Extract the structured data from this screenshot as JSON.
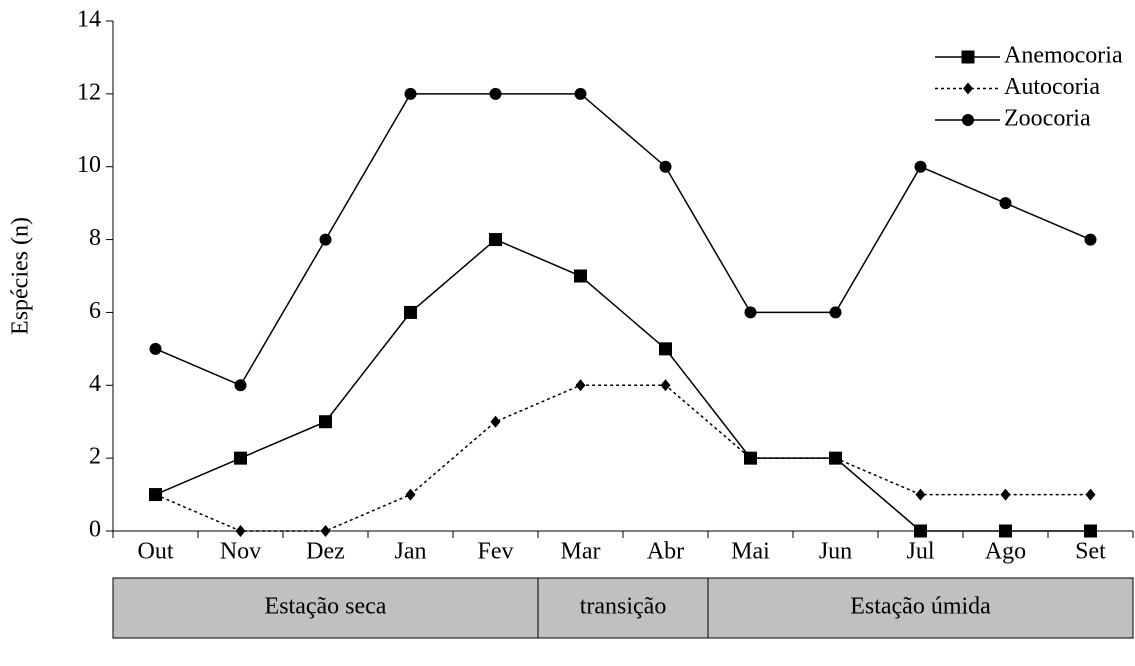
{
  "chart_data": {
    "type": "line",
    "ylabel": "Espécies (n)",
    "categories": [
      "Out",
      "Nov",
      "Dez",
      "Jan",
      "Fev",
      "Mar",
      "Abr",
      "Mai",
      "Jun",
      "Jul",
      "Ago",
      "Set"
    ],
    "series": [
      {
        "name": "Anemocoria",
        "color": "#000000",
        "marker": "square",
        "dash": "solid",
        "values": [
          1,
          2,
          3,
          6,
          8,
          7,
          5,
          2,
          2,
          0,
          0,
          0
        ]
      },
      {
        "name": "Autocoria",
        "color": "#000000",
        "marker": "diamond",
        "dash": "dotted",
        "values": [
          1,
          0,
          0,
          1,
          3,
          4,
          4,
          2,
          2,
          1,
          1,
          1
        ]
      },
      {
        "name": "Zoocoria",
        "color": "#000000",
        "marker": "circle",
        "dash": "solid",
        "values": [
          5,
          4,
          8,
          12,
          12,
          12,
          10,
          6,
          6,
          10,
          9,
          8
        ]
      }
    ],
    "ylim": [
      0,
      14
    ],
    "yticks": [
      0,
      2,
      4,
      6,
      8,
      10,
      12,
      14
    ],
    "legend": "upper right",
    "seasons": [
      {
        "label": "Estação seca",
        "months": 5
      },
      {
        "label": "transição",
        "months": 2
      },
      {
        "label": "Estação úmida",
        "months": 5
      }
    ]
  }
}
